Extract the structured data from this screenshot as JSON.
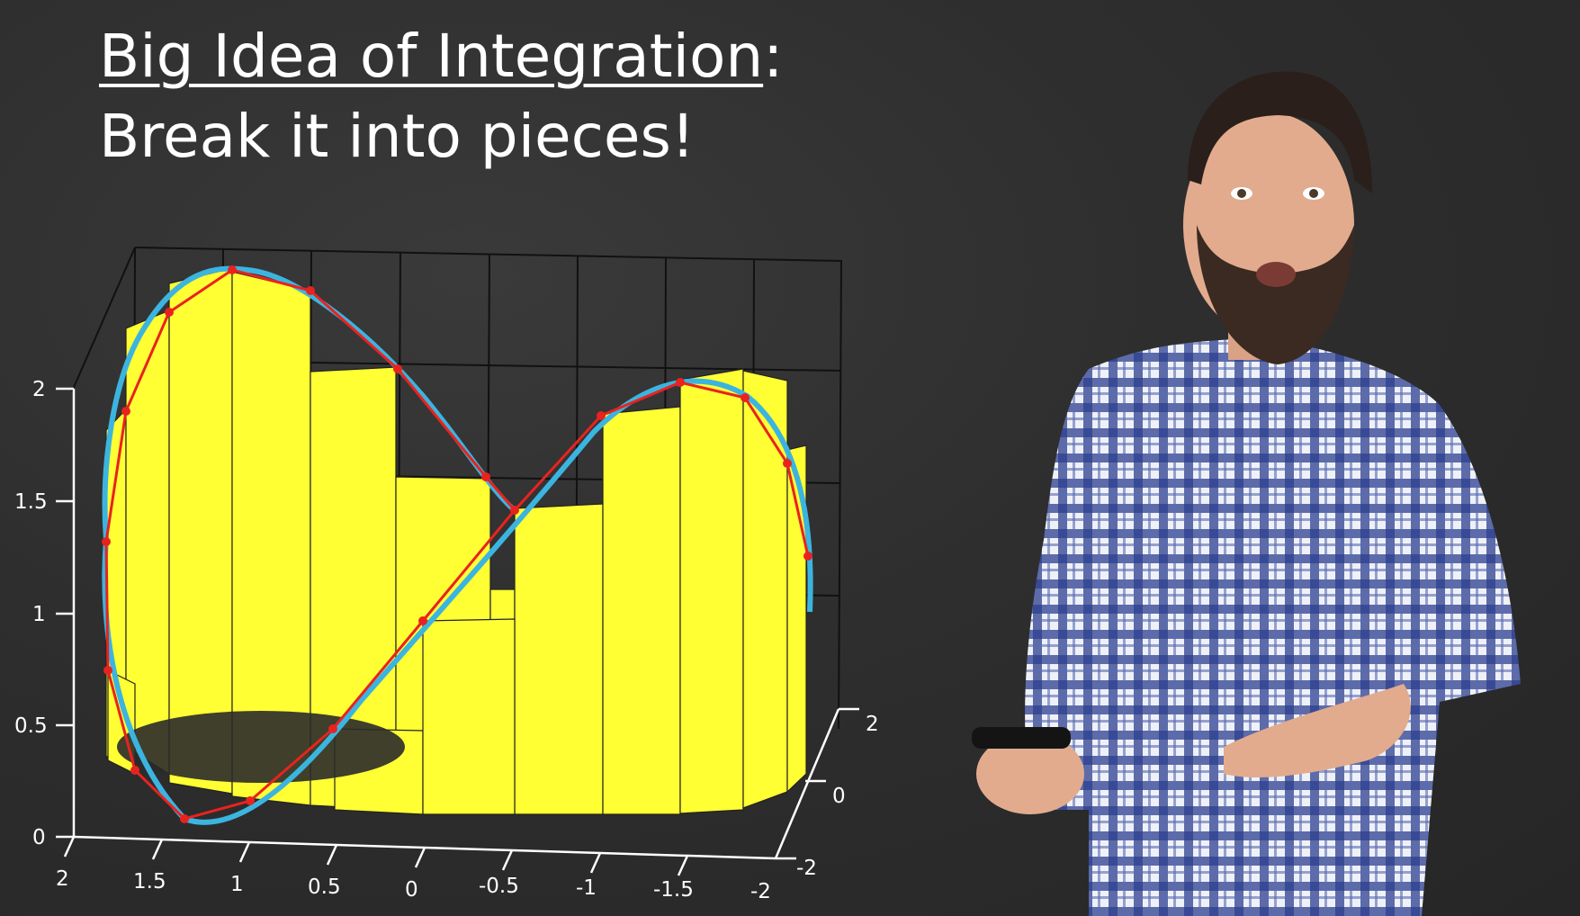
{
  "slide": {
    "title_line1": "Big Idea of Integration",
    "title_colon": ":",
    "title_line2": "Break it into pieces!"
  },
  "colors": {
    "background": "#2b2b2b",
    "bars": "#ffff33",
    "curve": "#3cb4e0",
    "polyline": "#e8231f",
    "grid": "#000000",
    "axis": "#ffffff"
  },
  "chart_data": {
    "type": "3d-area",
    "x_ticks": [
      "2",
      "1.5",
      "1",
      "0.5",
      "0",
      "-0.5",
      "-1",
      "-1.5",
      "-2"
    ],
    "y_ticks": [
      "2",
      "0",
      "-2"
    ],
    "z_ticks": [
      "0",
      "0.5",
      "1",
      "1.5",
      "2"
    ],
    "xlim": [
      -2,
      2
    ],
    "ylim": [
      -2,
      2
    ],
    "zlim": [
      0,
      2
    ],
    "grid": true
  },
  "presenter": {
    "shirt": "blue-white plaid",
    "holding": "marker"
  }
}
